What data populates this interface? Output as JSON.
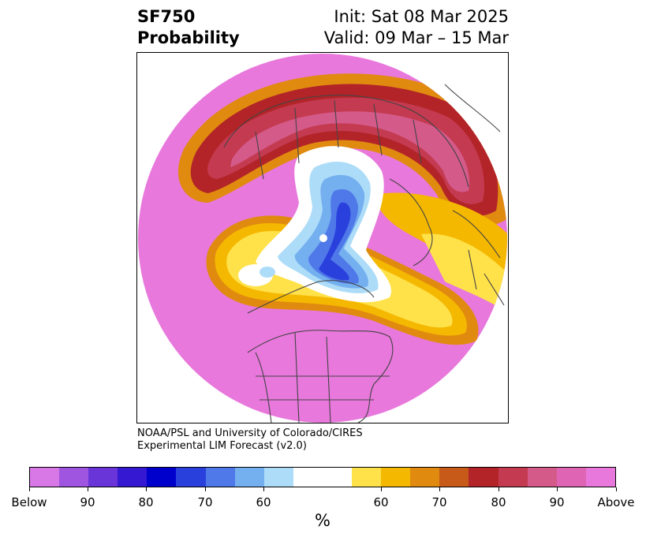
{
  "title": {
    "left_line1": "SF750",
    "left_line2": "Probability",
    "right_line1": "Init: Sat 08 Mar 2025",
    "right_line2": "Valid: 09 Mar – 15 Mar"
  },
  "credit": {
    "line1": "NOAA/PSL and University of Colorado/CIRES",
    "line2": "Experimental LIM Forecast (v2.0)"
  },
  "colorbar": {
    "colors": [
      "#d878e6",
      "#a055e0",
      "#6a35d8",
      "#3518d2",
      "#0000cc",
      "#2a40dd",
      "#4f78e8",
      "#74afef",
      "#acdcf8",
      "#ffffff",
      "#ffe14a",
      "#f5b800",
      "#e08a10",
      "#c75a18",
      "#b22428",
      "#c43a50",
      "#d45a8a",
      "#df64b4",
      "#e878dc"
    ],
    "tick_labels": [
      "Below",
      "90",
      "80",
      "70",
      "60",
      "60",
      "70",
      "80",
      "90",
      "Above"
    ],
    "unit": "%"
  },
  "map": {
    "projection": "north-polar-stereographic",
    "field": "SF750 probability",
    "colors": {
      "above_high": "#e878dc",
      "above_90": "#df64b4",
      "above_80": "#c43a50",
      "above_70": "#b22428",
      "above_60": "#e08a10",
      "above_50": "#f5b800",
      "above_40": "#ffe14a",
      "neutral": "#ffffff",
      "below_60": "#acdcf8",
      "below_70": "#74afef",
      "below_80": "#4f78e8",
      "below_90": "#2a40dd",
      "coastline": "#444444"
    }
  }
}
